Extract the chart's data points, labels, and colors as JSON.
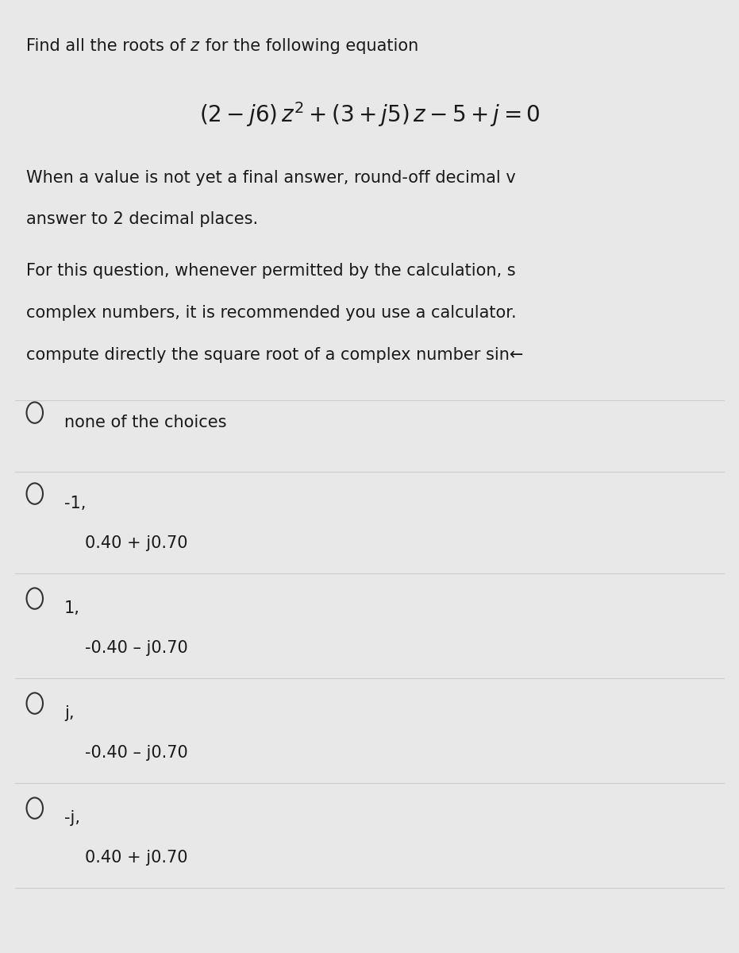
{
  "bg_color": "#e8e8e8",
  "text_color": "#1a1a1a",
  "separator_color": "#cccccc",
  "circle_color": "#333333",
  "font_size_body": 15,
  "font_size_equation": 20,
  "choices": [
    {
      "label1": "none of the choices",
      "label2": null
    },
    {
      "label1": "-1,",
      "label2": "0.40 + j0.70"
    },
    {
      "label1": "1,",
      "label2": "-0.40 – j0.70"
    },
    {
      "label1": "j,",
      "label2": "-0.40 – j0.70"
    },
    {
      "label1": "-j,",
      "label2": "0.40 + j0.70"
    }
  ]
}
